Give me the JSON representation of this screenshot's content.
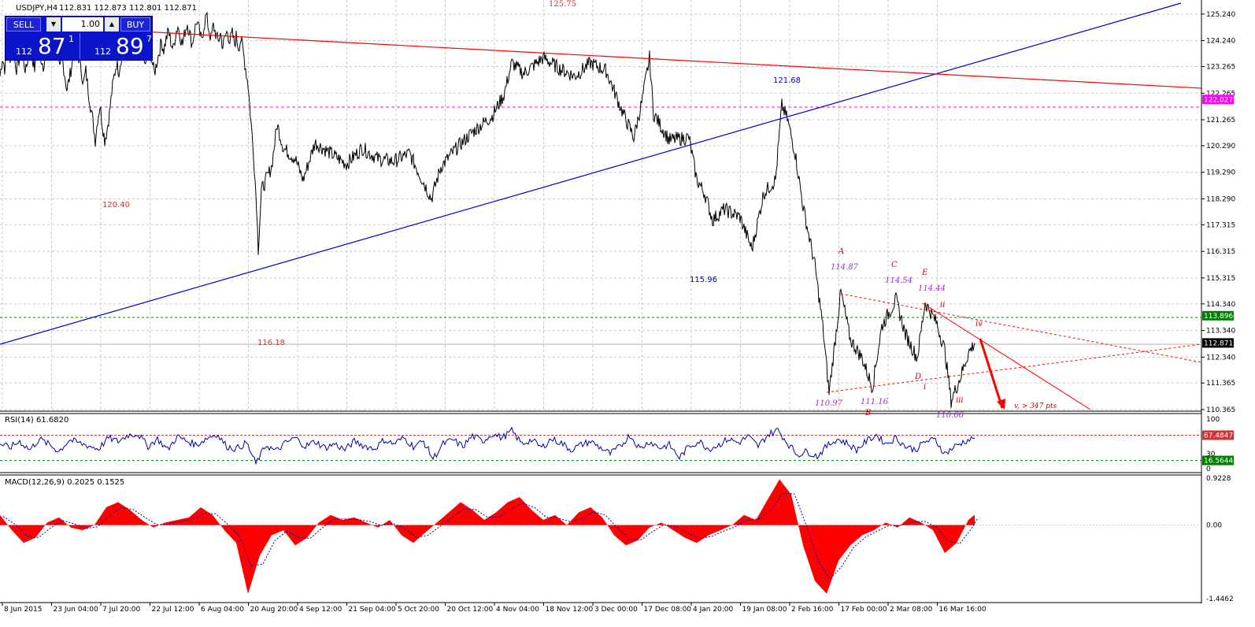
{
  "header": {
    "symbol_label": "USDJPY,H4",
    "ohlc_text": "112.831 112.873 112.801 112.871"
  },
  "trade_panel": {
    "sell_label": "SELL",
    "buy_label": "BUY",
    "lot_value": "1.00",
    "sell_price_prefix": "112",
    "sell_price_big": "87",
    "sell_price_sup": "1",
    "buy_price_prefix": "112",
    "buy_price_big": "89",
    "buy_price_sup": "7"
  },
  "colors": {
    "price_line": "#000000",
    "blue_trendline": "#0000cc",
    "red_trendline": "#ff0000",
    "dashed_red": "#ff0000",
    "magenta_level": "#ff00ff",
    "green_level": "#008000",
    "rsi_line": "#0000aa",
    "macd_hist": "#ff0000",
    "grid": "#c8c8c8"
  },
  "chart_data": [
    {
      "type": "line",
      "title": "USDJPY,H4",
      "x_tick_labels": [
        "8 Jun 2015",
        "23 Jun 04:00",
        "7 Jul 20:00",
        "22 Jul 12:00",
        "6 Aug 04:00",
        "20 Aug 20:00",
        "4 Sep 12:00",
        "21 Sep 04:00",
        "5 Oct 20:00",
        "20 Oct 12:00",
        "4 Nov 04:00",
        "18 Nov 12:00",
        "3 Dec 00:00",
        "17 Dec 08:00",
        "4 Jan 20:00",
        "19 Jan 08:00",
        "2 Feb 16:00",
        "17 Feb 00:00",
        "2 Mar 08:00",
        "16 Mar 16:00"
      ],
      "y_tick_labels": [
        "125.240",
        "124.240",
        "123.265",
        "122.265",
        "121.265",
        "120.290",
        "119.290",
        "118.290",
        "117.315",
        "116.315",
        "115.315",
        "114.340",
        "113.340",
        "112.340",
        "111.365",
        "110.365"
      ],
      "ylim": [
        110.365,
        125.65
      ],
      "price_tags": [
        {
          "label": "122.027",
          "value": 122.027,
          "color": "#ff00ff"
        },
        {
          "label": "113.896",
          "value": 113.896,
          "color": "#008000"
        },
        {
          "label": "112.871",
          "value": 112.871,
          "color": "#000000"
        }
      ],
      "series": [
        {
          "x": [
            0,
            3,
            6,
            9,
            12,
            15,
            18,
            21,
            24,
            27,
            30,
            33,
            35,
            38,
            41,
            44,
            47,
            49,
            52,
            55,
            58,
            60,
            63,
            65,
            67,
            70,
            73,
            76,
            79,
            82,
            85,
            88,
            91,
            94,
            97,
            100,
            103,
            106,
            109,
            112,
            115,
            118,
            121,
            124,
            127,
            130,
            133,
            136,
            139,
            142,
            145,
            148,
            151,
            154,
            157,
            160,
            163,
            166,
            169,
            172,
            175,
            178,
            181,
            184,
            187,
            190,
            193,
            196,
            199,
            202,
            205,
            208,
            211,
            214,
            217,
            220,
            223,
            226,
            229,
            232,
            235,
            238,
            241,
            244,
            247,
            250,
            253,
            256,
            259,
            262,
            265,
            268,
            271,
            274,
            277,
            280,
            283,
            286,
            289,
            292,
            295,
            298,
            300,
            303,
            306,
            309,
            312,
            315
          ],
          "values": [
            122.9,
            123.6,
            123.2,
            123.7,
            123.5,
            123.9,
            123.6,
            123.2,
            123.5,
            123.9,
            123.4,
            123.1,
            123.5,
            123.9,
            123.6,
            123.2,
            123.7,
            124.0,
            123.6,
            123.3,
            123.8,
            124.1,
            123.7,
            123.4,
            123.8,
            124.0,
            123.5,
            123.1,
            123.6,
            123.0,
            122.4,
            122.8,
            123.3,
            123.8,
            124.1,
            123.6,
            123.2,
            122.6,
            123.1,
            122.4,
            121.8,
            121.2,
            120.5,
            121.3,
            121.8,
            121.1,
            120.5,
            120.9,
            121.5,
            122.3,
            122.9,
            123.4,
            123.1,
            123.6,
            124.0,
            123.7,
            124.2,
            124.5,
            124.1,
            123.6,
            124.0,
            124.3,
            123.8,
            123.3,
            123.7,
            124.1,
            123.5,
            123.0,
            123.4,
            123.8,
            124.2,
            123.9,
            124.3,
            124.6,
            124.2,
            123.9,
            124.5,
            124.8,
            124.4,
            124.1,
            124.6,
            124.9,
            124.5,
            124.1,
            124.6,
            125.0,
            124.6,
            124.2,
            124.8,
            125.2,
            124.7,
            124.3,
            124.8,
            124.5,
            124.2,
            124.5,
            124.0,
            124.4,
            124.6,
            124.2,
            124.5,
            124.1,
            124.4,
            124.0,
            124.3,
            123.8,
            123.2,
            122.6
          ]
        }
      ],
      "annotations": [
        {
          "text": "125.75",
          "color": "#cc3333"
        },
        {
          "text": "121.68",
          "color": "#0000cc"
        },
        {
          "text": "120.40",
          "color": "#cc3333"
        },
        {
          "text": "115.96",
          "color": "#0000cc"
        },
        {
          "text": "116.18",
          "color": "#cc3333"
        },
        {
          "text": "A",
          "color": "#cc0000"
        },
        {
          "text": "114.87",
          "color": "#9933cc"
        },
        {
          "text": "C",
          "color": "#cc0000"
        },
        {
          "text": "114.54",
          "color": "#9933cc"
        },
        {
          "text": "E",
          "color": "#cc0000"
        },
        {
          "text": "114.44",
          "color": "#9933cc"
        },
        {
          "text": "ii",
          "color": "#cc0000"
        },
        {
          "text": "iv",
          "color": "#cc0000"
        },
        {
          "text": "i",
          "color": "#cc0000"
        },
        {
          "text": "D",
          "color": "#cc0000"
        },
        {
          "text": "110.97",
          "color": "#9933cc"
        },
        {
          "text": "111.16",
          "color": "#9933cc"
        },
        {
          "text": "B",
          "color": "#cc0000"
        },
        {
          "text": "iii",
          "color": "#cc0000"
        },
        {
          "text": "110.66",
          "color": "#9933cc"
        },
        {
          "text": "v, > 347 pts",
          "color": "#cc0000"
        }
      ]
    },
    {
      "type": "line",
      "title": "RSI(14) 61.6820",
      "y_tick_labels": [
        "100",
        "30",
        "0"
      ],
      "ylim": [
        0,
        100
      ],
      "levels": [
        {
          "label": "67.4847",
          "value": 67.4847,
          "color": "#cc3333"
        },
        {
          "label": "16.5644",
          "value": 16.5644,
          "color": "#008000"
        }
      ],
      "series": [
        {
          "x": [
            0,
            12,
            25,
            38,
            50,
            63,
            75,
            88,
            100,
            113,
            125,
            138,
            150,
            163,
            175,
            188,
            200,
            213,
            225,
            238,
            250,
            263,
            275,
            288,
            300,
            313,
            325,
            338,
            350,
            363,
            375,
            388,
            400,
            413,
            425,
            438,
            450,
            463,
            475,
            488,
            500,
            513,
            525,
            538,
            550,
            563,
            575,
            588,
            600,
            613,
            625,
            638,
            650,
            663,
            675,
            688,
            700,
            713,
            725,
            738,
            750,
            763,
            775,
            788,
            800,
            813,
            825,
            838,
            850,
            863,
            875,
            888,
            900,
            913,
            925,
            938,
            950,
            963,
            975,
            988,
            1000,
            1013,
            1025,
            1038,
            1050,
            1063,
            1075,
            1088,
            1100,
            1113,
            1125,
            1138,
            1150,
            1163,
            1175,
            1188,
            1200,
            1213,
            1225,
            1238
          ],
          "values": [
            50,
            42,
            55,
            38,
            60,
            48,
            35,
            58,
            52,
            46,
            40,
            62,
            55,
            68,
            70,
            45,
            60,
            38,
            65,
            55,
            48,
            62,
            70,
            45,
            40,
            52,
            10,
            48,
            35,
            52,
            62,
            45,
            55,
            42,
            50,
            38,
            55,
            46,
            40,
            58,
            50,
            62,
            45,
            55,
            20,
            50,
            58,
            45,
            66,
            55,
            70,
            62,
            76,
            50,
            58,
            42,
            60,
            52,
            38,
            48,
            55,
            42,
            30,
            45,
            68,
            40,
            55,
            42,
            48,
            22,
            45,
            55,
            40,
            48,
            60,
            52,
            65,
            45,
            68,
            78,
            52,
            28,
            35,
            25,
            45,
            60,
            52,
            38,
            55,
            68,
            50,
            62,
            45,
            38,
            55,
            58,
            30,
            45,
            55,
            61.682
          ]
        }
      ]
    },
    {
      "type": "area",
      "title": "MACD(12,26,9) 0.2025 0.1525",
      "y_tick_labels": [
        "0.9228",
        "0.00",
        "-1.4462"
      ],
      "ylim": [
        -1.4462,
        0.9228
      ],
      "series": [
        {
          "name": "MACD",
          "x": [
            0,
            15,
            30,
            45,
            60,
            75,
            90,
            105,
            120,
            135,
            150,
            165,
            180,
            195,
            210,
            225,
            240,
            255,
            270,
            285,
            300,
            315,
            330,
            345,
            360,
            375,
            390,
            405,
            420,
            435,
            450,
            465,
            480,
            495,
            510,
            525,
            540,
            555,
            570,
            585,
            600,
            615,
            630,
            645,
            660,
            675,
            690,
            705,
            720,
            735,
            750,
            765,
            780,
            795,
            810,
            825,
            840,
            855,
            870,
            885,
            900,
            915,
            930,
            945,
            960,
            975,
            990,
            1005,
            1020,
            1035,
            1050,
            1065,
            1080,
            1095,
            1110,
            1125,
            1140,
            1155,
            1170,
            1185,
            1200,
            1215,
            1230,
            1238
          ],
          "values": [
            0.2,
            -0.1,
            -0.35,
            -0.25,
            0.05,
            0.15,
            -0.05,
            -0.1,
            0.0,
            0.35,
            0.45,
            0.3,
            0.1,
            -0.05,
            0.05,
            0.1,
            0.15,
            0.35,
            0.2,
            -0.1,
            -0.35,
            -1.35,
            -0.6,
            -0.2,
            -0.1,
            -0.4,
            -0.25,
            0.05,
            0.2,
            0.1,
            0.15,
            0.05,
            -0.05,
            0.1,
            -0.2,
            -0.35,
            -0.15,
            0.05,
            0.25,
            0.45,
            0.3,
            0.1,
            0.25,
            0.45,
            0.55,
            0.3,
            0.1,
            0.2,
            0.0,
            0.25,
            0.35,
            0.15,
            -0.2,
            -0.4,
            -0.3,
            -0.05,
            0.05,
            -0.1,
            -0.25,
            -0.35,
            -0.2,
            -0.1,
            0.0,
            0.2,
            0.1,
            0.5,
            0.9,
            0.6,
            -0.4,
            -1.1,
            -1.35,
            -0.7,
            -0.4,
            -0.2,
            -0.1,
            0.05,
            -0.05,
            0.15,
            0.05,
            -0.1,
            -0.55,
            -0.35,
            0.1,
            0.2025
          ]
        }
      ]
    }
  ]
}
